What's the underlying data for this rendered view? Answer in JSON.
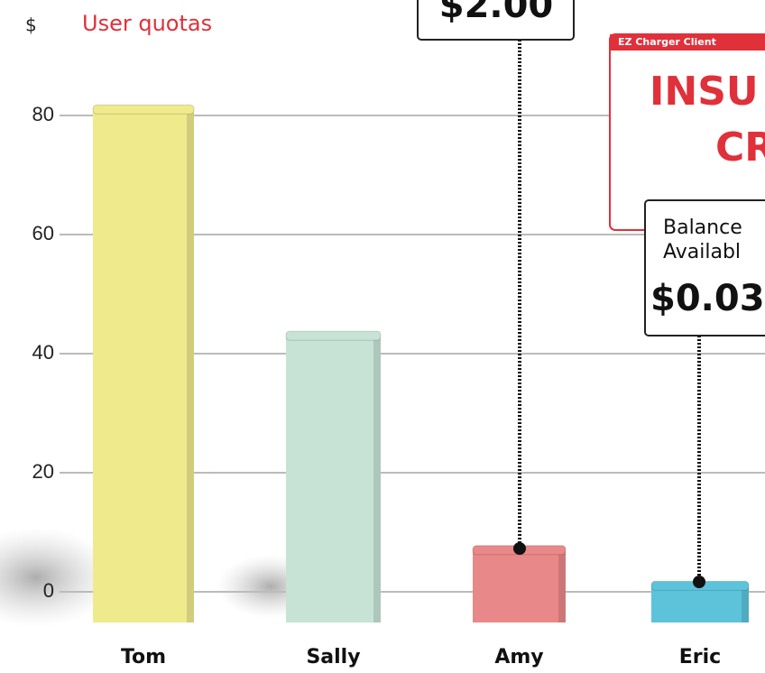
{
  "chart_data": {
    "type": "bar",
    "title": "User quotas",
    "y_label": "$",
    "categories": [
      "Tom",
      "Sally",
      "Amy",
      "Eric"
    ],
    "values": [
      81,
      43,
      7,
      1
    ],
    "colors": [
      "#efea8c",
      "#c6e3d6",
      "#e98888",
      "#5cc3db"
    ],
    "ylim": [
      0,
      100
    ],
    "yticks": [
      0,
      20,
      40,
      60,
      80
    ],
    "grid": true
  },
  "callouts": {
    "amy_amount": "$2.00",
    "alert": {
      "header": "EZ Charger Client",
      "line1": "INSU",
      "line2": "CR"
    },
    "balance": {
      "line1": "Balance",
      "line2": "Availabl",
      "amount": "$0.03"
    }
  }
}
